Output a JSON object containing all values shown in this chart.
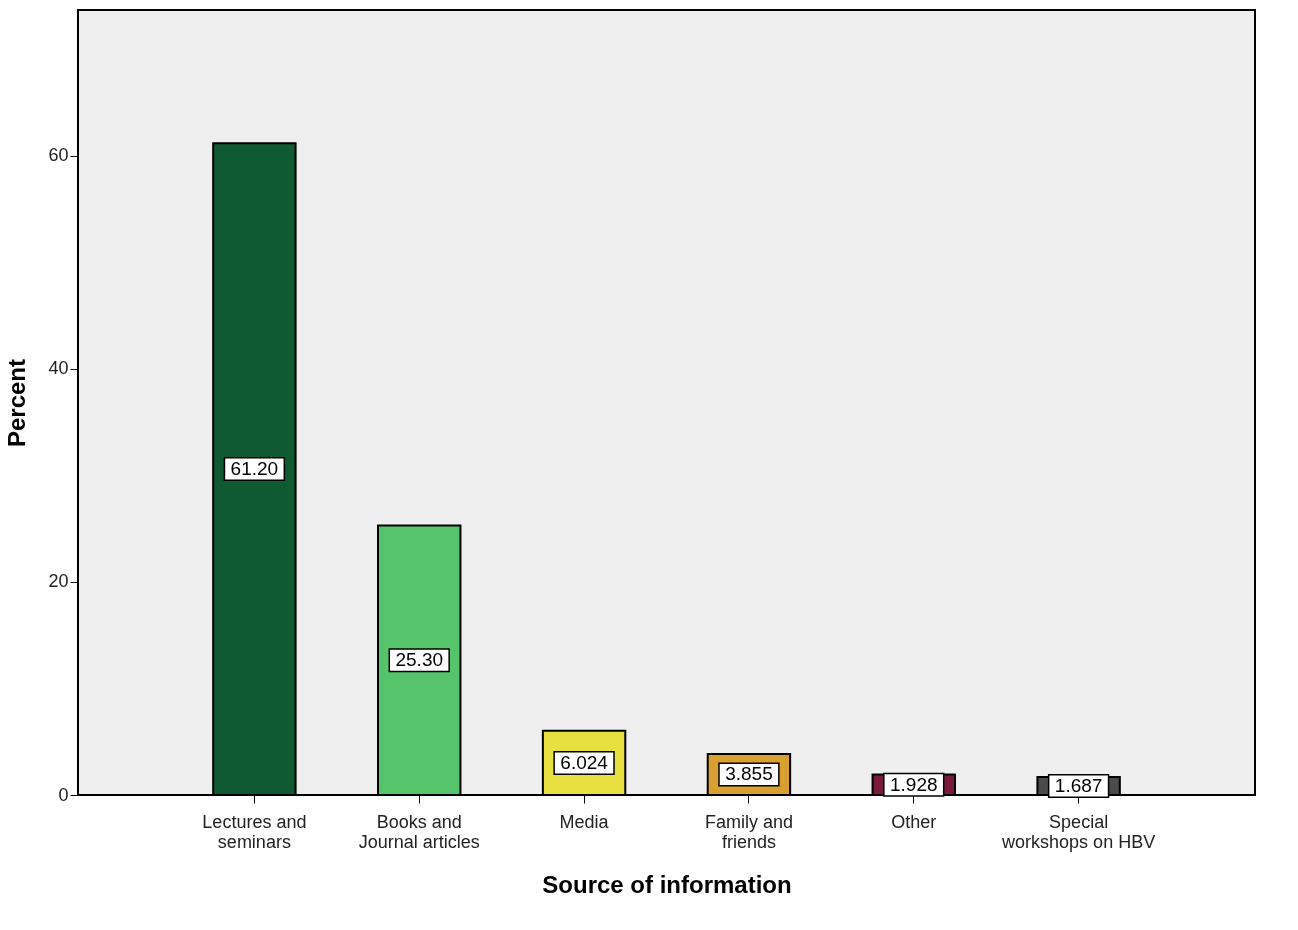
{
  "chart_data": {
    "type": "bar",
    "xlabel": "Source of information",
    "ylabel": "Percent",
    "categories": [
      "Lectures and seminars",
      "Books and Journal articles",
      "Media",
      "Family and friends",
      "Other",
      "Special workshops on HBV"
    ],
    "values": [
      61.2,
      25.3,
      6.024,
      3.855,
      1.928,
      1.687
    ],
    "value_labels": [
      "61.20",
      "25.30",
      "6.024",
      "3.855",
      "1.928",
      "1.687"
    ],
    "colors": [
      "#0f5a30",
      "#55c46a",
      "#e8e040",
      "#d8a030",
      "#7a1a3a",
      "#4a4a4a"
    ],
    "ylim": [
      0,
      73.7
    ],
    "yticks": [
      0,
      20,
      40,
      60
    ],
    "grid": false
  }
}
